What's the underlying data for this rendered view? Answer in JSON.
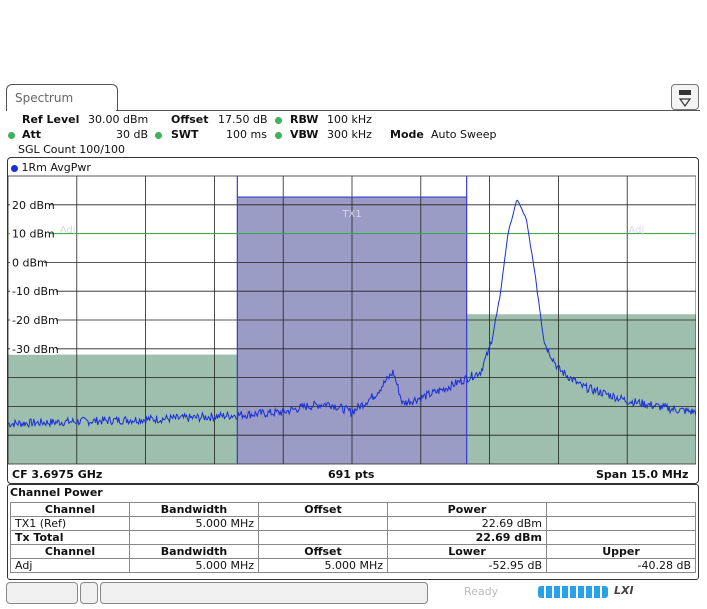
{
  "tab": {
    "label": "Spectrum"
  },
  "header": {
    "ref_level_label": "Ref Level",
    "ref_level_value": "30.00 dBm",
    "offset_label": "Offset",
    "offset_value": "17.50 dB",
    "rbw_label": "RBW",
    "rbw_value": "100 kHz",
    "att_label": "Att",
    "att_value": "30 dB",
    "swt_label": "SWT",
    "swt_value": "100 ms",
    "vbw_label": "VBW",
    "vbw_value": "300 kHz",
    "mode_label": "Mode",
    "mode_value": "Auto Sweep",
    "sgl_count": "SGL Count 100/100"
  },
  "trace": {
    "label": "1Rm AvgPwr",
    "color": "#1a2fd6"
  },
  "plot": {
    "y_ticks": [
      "20 dBm",
      "10 dBm",
      "0 dBm",
      "-10 dBm",
      "-20 dBm",
      "-30 dBm"
    ],
    "ref_line_value_dbm": 10,
    "channel_labels": {
      "tx": "TX1",
      "adj_left": "Adj",
      "adj_right": "Adj"
    },
    "cf": "CF 3.6975 GHz",
    "pts": "691 pts",
    "span": "Span 15.0 MHz"
  },
  "chart_data": {
    "type": "line",
    "x_unit": "MHz offset from CF",
    "xlim": [
      -7.5,
      7.5
    ],
    "ylim": [
      -30,
      30
    ],
    "y_unit": "dBm",
    "channel_shading": [
      {
        "name": "Adj",
        "x_from": -7.5,
        "x_to": -2.5,
        "level_dbm": -32
      },
      {
        "name": "TX1",
        "x_from": -2.5,
        "x_to": 2.5,
        "level_dbm": 22.69
      },
      {
        "name": "Adj",
        "x_from": 2.5,
        "x_to": 7.5,
        "level_dbm": -18
      }
    ],
    "trace_points": [
      [
        -7.5,
        -56
      ],
      [
        -6.5,
        -55.5
      ],
      [
        -5.5,
        -55
      ],
      [
        -4.5,
        -54.5
      ],
      [
        -3.5,
        -54
      ],
      [
        -2.5,
        -53
      ],
      [
        -1.5,
        -52
      ],
      [
        -1.0,
        -50
      ],
      [
        -0.5,
        -49
      ],
      [
        0.0,
        -52
      ],
      [
        0.5,
        -46
      ],
      [
        0.9,
        -38
      ],
      [
        1.1,
        -49
      ],
      [
        1.5,
        -47
      ],
      [
        2.0,
        -44
      ],
      [
        2.8,
        -38
      ],
      [
        3.0,
        -30
      ],
      [
        3.2,
        -15
      ],
      [
        3.4,
        10
      ],
      [
        3.6,
        22
      ],
      [
        3.8,
        15
      ],
      [
        4.0,
        -5
      ],
      [
        4.2,
        -28
      ],
      [
        4.5,
        -37
      ],
      [
        5.0,
        -43
      ],
      [
        6.0,
        -48
      ],
      [
        7.0,
        -51
      ],
      [
        7.5,
        -52
      ]
    ]
  },
  "channel_power": {
    "title": "Channel Power",
    "head1": [
      "Channel",
      "Bandwidth",
      "Offset",
      "Power",
      ""
    ],
    "row1": [
      "TX1 (Ref)",
      "5.000 MHz",
      "",
      "22.69 dBm",
      ""
    ],
    "row2": [
      "Tx Total",
      "",
      "",
      "22.69 dBm",
      ""
    ],
    "head2": [
      "Channel",
      "Bandwidth",
      "Offset",
      "Lower",
      "Upper"
    ],
    "row3": [
      "Adj",
      "5.000 MHz",
      "5.000 MHz",
      "-52.95 dB",
      "-40.28 dB"
    ]
  },
  "status": {
    "ready": "Ready",
    "lxi": "LXI"
  }
}
